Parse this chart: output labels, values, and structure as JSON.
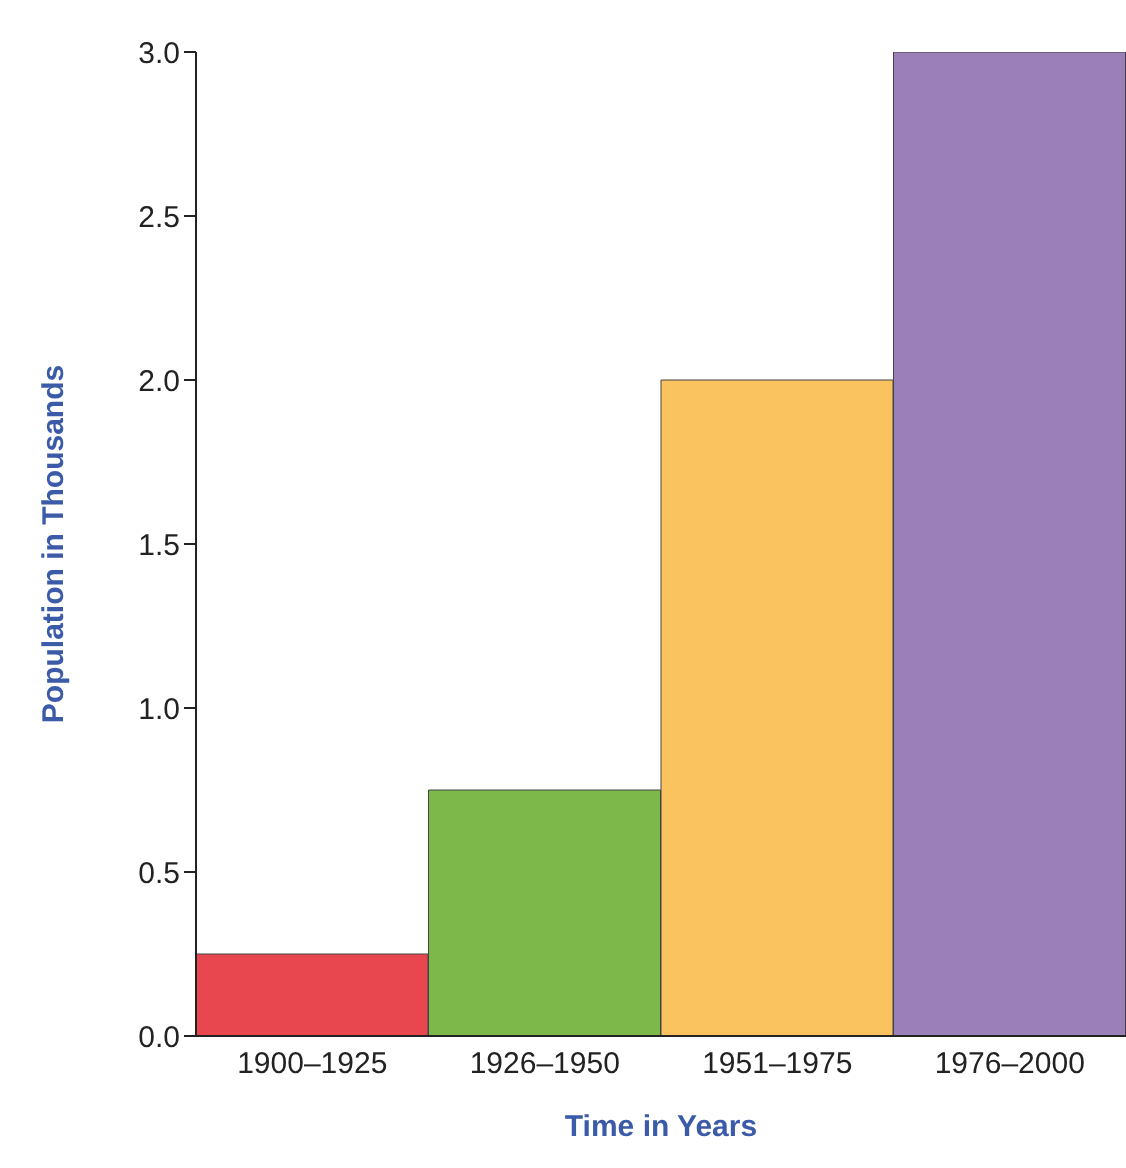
{
  "chart_data": {
    "type": "bar",
    "xlabel": "Time in Years",
    "ylabel": "Population in Thousands",
    "categories": [
      "1900–1925",
      "1926–1950",
      "1951–1975",
      "1976–2000"
    ],
    "values": [
      0.25,
      0.75,
      2.0,
      3.0
    ],
    "colors": [
      "#e8474f",
      "#7cb84a",
      "#fbc260",
      "#9b7fb8"
    ],
    "ylim": [
      0,
      3.0
    ],
    "yticks": [
      {
        "value": 0,
        "label": "0.0"
      },
      {
        "value": 0.5,
        "label": "0.5"
      },
      {
        "value": 1,
        "label": "1.0"
      },
      {
        "value": 1.5,
        "label": "1.5"
      },
      {
        "value": 2,
        "label": "2.0"
      },
      {
        "value": 2.5,
        "label": "2.5"
      },
      {
        "value": 3,
        "label": "3.0"
      }
    ],
    "grid": false
  }
}
